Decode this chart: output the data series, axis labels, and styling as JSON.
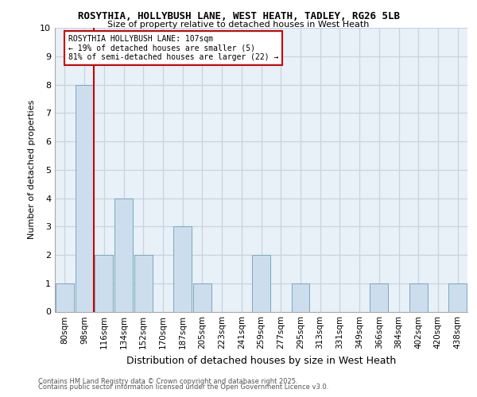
{
  "title1": "ROSYTHIA, HOLLYBUSH LANE, WEST HEATH, TADLEY, RG26 5LB",
  "title2": "Size of property relative to detached houses in West Heath",
  "xlabel": "Distribution of detached houses by size in West Heath",
  "ylabel": "Number of detached properties",
  "bins": [
    "80sqm",
    "98sqm",
    "116sqm",
    "134sqm",
    "152sqm",
    "170sqm",
    "187sqm",
    "205sqm",
    "223sqm",
    "241sqm",
    "259sqm",
    "277sqm",
    "295sqm",
    "313sqm",
    "331sqm",
    "349sqm",
    "366sqm",
    "384sqm",
    "402sqm",
    "420sqm",
    "438sqm"
  ],
  "values": [
    1,
    8,
    2,
    4,
    2,
    0,
    3,
    1,
    0,
    0,
    2,
    0,
    1,
    0,
    0,
    0,
    1,
    0,
    1,
    0,
    1
  ],
  "bar_color": "#ccdded",
  "bar_edge_color": "#7aaabb",
  "red_line_color": "#cc0000",
  "red_line_x": 1.5,
  "annotation_text": "ROSYTHIA HOLLYBUSH LANE: 107sqm\n← 19% of detached houses are smaller (5)\n81% of semi-detached houses are larger (22) →",
  "annotation_box_facecolor": "#ffffff",
  "annotation_box_edgecolor": "#cc0000",
  "ylim": [
    0,
    10
  ],
  "yticks": [
    0,
    1,
    2,
    3,
    4,
    5,
    6,
    7,
    8,
    9,
    10
  ],
  "grid_color": "#c8d4e0",
  "bg_color": "#e8f0f8",
  "fig_bg_color": "#ffffff",
  "title1_fontsize": 9,
  "title2_fontsize": 8,
  "xlabel_fontsize": 9,
  "ylabel_fontsize": 8,
  "tick_fontsize": 7.5,
  "ann_fontsize": 7,
  "footer1": "Contains HM Land Registry data © Crown copyright and database right 2025.",
  "footer2": "Contains public sector information licensed under the Open Government Licence v3.0.",
  "footer_fontsize": 6
}
